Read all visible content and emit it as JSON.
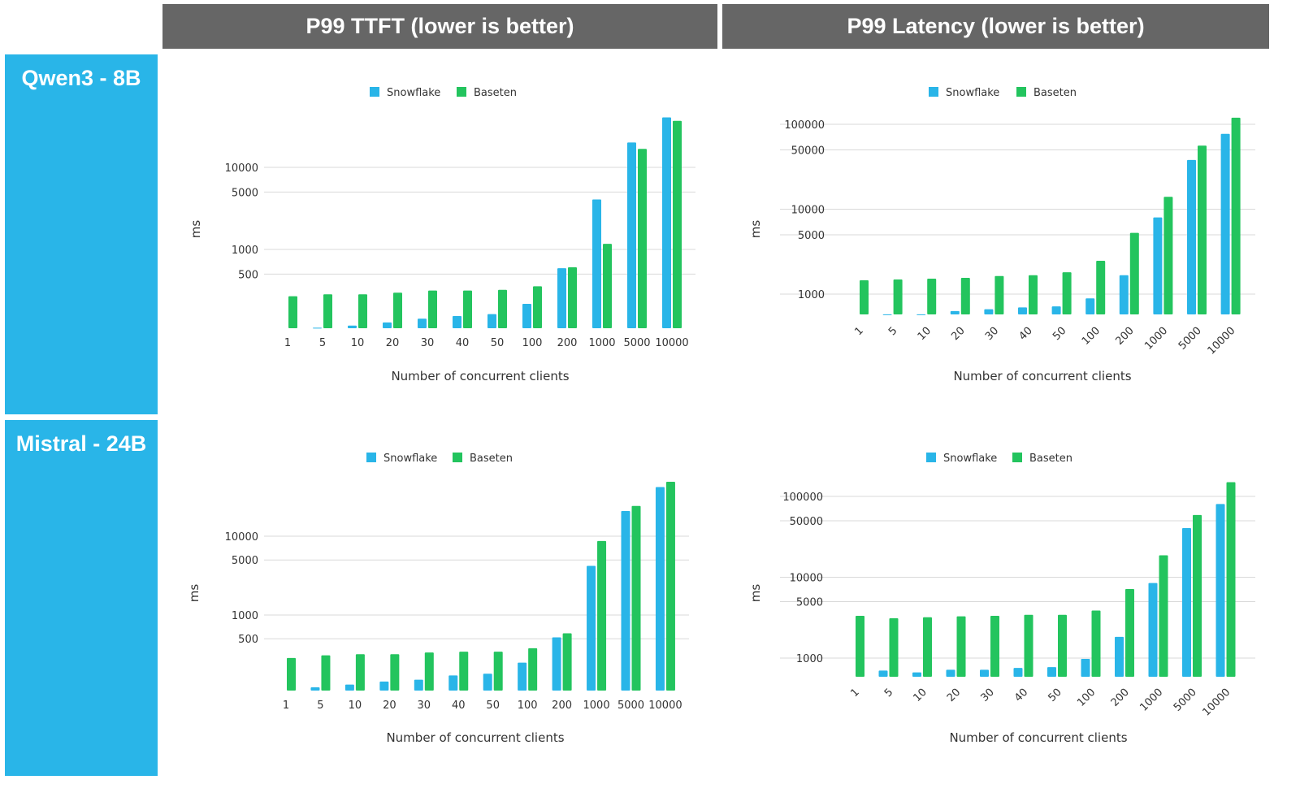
{
  "headers": [
    "P99 TTFT (lower is better)",
    "P99 Latency (lower is better)"
  ],
  "rows": [
    "Qwen3 - 8B",
    "Mistral - 24B"
  ],
  "colors": {
    "Snowflake": "#29b5e8",
    "Baseten": "#23c45e",
    "header_bg": "#666666",
    "row_bg": "#29b5e8"
  },
  "chart_data": [
    {
      "type": "bar",
      "row": "Qwen3 - 8B",
      "column": "P99 TTFT (lower is better)",
      "categories": [
        "1",
        "5",
        "10",
        "20",
        "30",
        "40",
        "50",
        "100",
        "200",
        "1000",
        "5000",
        "10000"
      ],
      "series": [
        {
          "name": "Snowflake",
          "values": [
            null,
            111,
            118,
            129,
            143,
            154,
            163,
            217,
            591,
            4060,
            20100,
            40600
          ]
        },
        {
          "name": "Baseten",
          "values": [
            269,
            284,
            284,
            297,
            315,
            315,
            322,
            355,
            605,
            1170,
            16800,
            36900
          ]
        }
      ],
      "xlabel": "Number of concurrent clients",
      "ylabel": "ms",
      "yscale": "log",
      "ylim": [
        110,
        40000
      ],
      "yticks": [
        10000,
        5000,
        1000,
        500
      ],
      "grid": true,
      "legend": "top",
      "xtick_rotation": 0
    },
    {
      "type": "bar",
      "row": "Qwen3 - 8B",
      "column": "P99 Latency (lower is better)",
      "categories": [
        "1",
        "5",
        "10",
        "20",
        "30",
        "40",
        "50",
        "100",
        "200",
        "1000",
        "5000",
        "10000"
      ],
      "series": [
        {
          "name": "Snowflake",
          "values": [
            null,
            578,
            578,
            631,
            663,
            697,
            717,
            891,
            1670,
            8000,
            38000,
            77100
          ]
        },
        {
          "name": "Baseten",
          "values": [
            1455,
            1488,
            1520,
            1553,
            1633,
            1670,
            1808,
            2465,
            5260,
            14000,
            56100,
            119700
          ]
        }
      ],
      "xlabel": "Number of concurrent clients",
      "ylabel": "ms",
      "yscale": "log",
      "ylim": [
        575,
        120000
      ],
      "yticks": [
        100000,
        50000,
        10000,
        5000,
        1000
      ],
      "grid": true,
      "legend": "top",
      "xtick_rotation": -45
    },
    {
      "type": "bar",
      "row": "Mistral - 24B",
      "column": "P99 TTFT (lower is better)",
      "categories": [
        "1",
        "5",
        "10",
        "20",
        "30",
        "40",
        "50",
        "100",
        "200",
        "1000",
        "5000",
        "10000"
      ],
      "series": [
        {
          "name": "Snowflake",
          "values": [
            null,
            121,
            131,
            143,
            151,
            171,
            180,
            249,
            521,
            4200,
            20900,
            42000
          ]
        },
        {
          "name": "Baseten",
          "values": [
            285,
            308,
            318,
            318,
            335,
            343,
            343,
            379,
            587,
            8690,
            24200,
            49000
          ]
        }
      ],
      "xlabel": "Number of concurrent clients",
      "ylabel": "ms",
      "yscale": "log",
      "ylim": [
        110,
        50000
      ],
      "yticks": [
        10000,
        5000,
        1000,
        500
      ],
      "grid": true,
      "legend": "top",
      "xtick_rotation": 0
    },
    {
      "type": "bar",
      "row": "Mistral - 24B",
      "column": "P99 Latency (lower is better)",
      "categories": [
        "1",
        "5",
        "10",
        "20",
        "30",
        "40",
        "50",
        "100",
        "200",
        "1000",
        "5000",
        "10000"
      ],
      "series": [
        {
          "name": "Snowflake",
          "values": [
            null,
            701,
            665,
            717,
            717,
            755,
            773,
            977,
            1830,
            8490,
            40600,
            80400
          ]
        },
        {
          "name": "Baseten",
          "values": [
            3330,
            3110,
            3200,
            3280,
            3330,
            3430,
            3430,
            3870,
            7140,
            18700,
            58900,
            150000
          ]
        }
      ],
      "xlabel": "Number of concurrent clients",
      "ylabel": "ms",
      "yscale": "log",
      "ylim": [
        587,
        150000
      ],
      "yticks": [
        100000,
        50000,
        10000,
        5000,
        1000
      ],
      "grid": true,
      "legend": "top",
      "xtick_rotation": -45
    }
  ]
}
